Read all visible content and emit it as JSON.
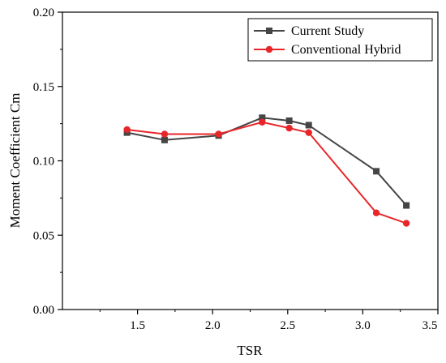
{
  "chart_data": {
    "type": "line",
    "xlabel": "TSR",
    "ylabel": "Moment Coefficient Cm",
    "xlim": [
      1.0,
      3.5
    ],
    "ylim": [
      0.0,
      0.2
    ],
    "xticks": [
      "1.5",
      "2.0",
      "2.5",
      "3.0",
      "3.5"
    ],
    "xtick_values": [
      1.5,
      2.0,
      2.5,
      3.0,
      3.5
    ],
    "yticks": [
      "0.00",
      "0.05",
      "0.10",
      "0.15",
      "0.20"
    ],
    "ytick_values": [
      0.0,
      0.05,
      0.1,
      0.15,
      0.2
    ],
    "grid": false,
    "legend_position": "top-right",
    "series": [
      {
        "name": "Current Study",
        "color": "#454545",
        "marker": "square",
        "x": [
          1.43,
          1.68,
          2.04,
          2.33,
          2.51,
          2.64,
          3.09,
          3.29
        ],
        "y": [
          0.119,
          0.114,
          0.117,
          0.129,
          0.127,
          0.124,
          0.093,
          0.07
        ]
      },
      {
        "name": "Conventional Hybrid",
        "color": "#e8262a",
        "marker": "circle",
        "x": [
          1.43,
          1.68,
          2.04,
          2.33,
          2.51,
          2.64,
          3.09,
          3.29
        ],
        "y": [
          0.121,
          0.118,
          0.118,
          0.126,
          0.122,
          0.119,
          0.065,
          0.058
        ]
      }
    ]
  }
}
